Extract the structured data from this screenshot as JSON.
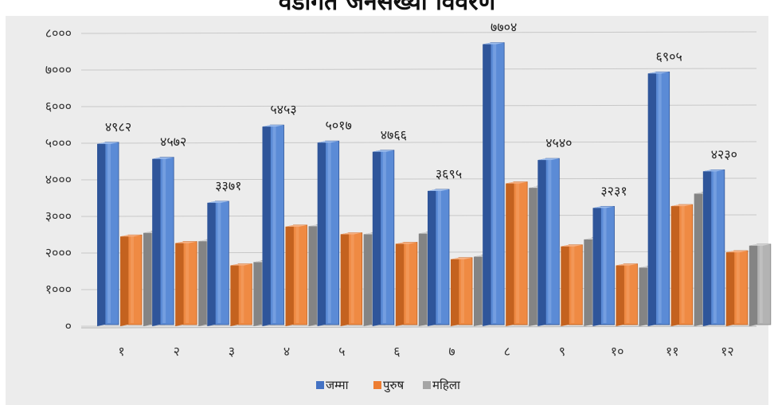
{
  "title": "वडागत जनसंख्या विवरण",
  "colors": {
    "background": "#ececec",
    "grid": "#c8c8c8",
    "series": [
      "#4472c4",
      "#ed7d31",
      "#a5a5a5"
    ],
    "series_dark": [
      "#2f559a",
      "#c4621f",
      "#848484"
    ]
  },
  "chart_data": {
    "type": "bar",
    "style": "3d-clustered-column",
    "categories": [
      "१",
      "२",
      "३",
      "४",
      "५",
      "६",
      "७",
      "८",
      "९",
      "१०",
      "११",
      "१२"
    ],
    "series": [
      {
        "name": "जम्मा",
        "values": [
          4982,
          4572,
          3371,
          5453,
          5017,
          4766,
          3695,
          7704,
          4540,
          3231,
          6905,
          4230
        ]
      },
      {
        "name": "पुरुष",
        "values": [
          2450,
          2270,
          1660,
          2720,
          2510,
          2250,
          1830,
          3900,
          2180,
          1660,
          3280,
          2020
        ]
      },
      {
        "name": "महिला",
        "values": [
          2550,
          2320,
          1750,
          2730,
          2510,
          2530,
          1900,
          3780,
          2370,
          1600,
          3620,
          2200
        ]
      }
    ],
    "data_labels": [
      "४९८२",
      "४५७२",
      "३३७१",
      "५४५३",
      "५०१७",
      "४७६६",
      "३६९५",
      "७७०४",
      "४५४०",
      "३२३१",
      "६९०५",
      "४२३०"
    ],
    "y_ticks": [
      0,
      1000,
      2000,
      3000,
      4000,
      5000,
      6000,
      7000,
      8000
    ],
    "y_tick_labels": [
      "०",
      "१०००",
      "२०००",
      "३०००",
      "४०००",
      "५०००",
      "६०००",
      "७०००",
      "८०००"
    ],
    "ylim": [
      0,
      8000
    ],
    "legend": [
      "जम्मा",
      "पुरुष",
      "महिला"
    ],
    "legend_position": "bottom",
    "grid": true
  }
}
